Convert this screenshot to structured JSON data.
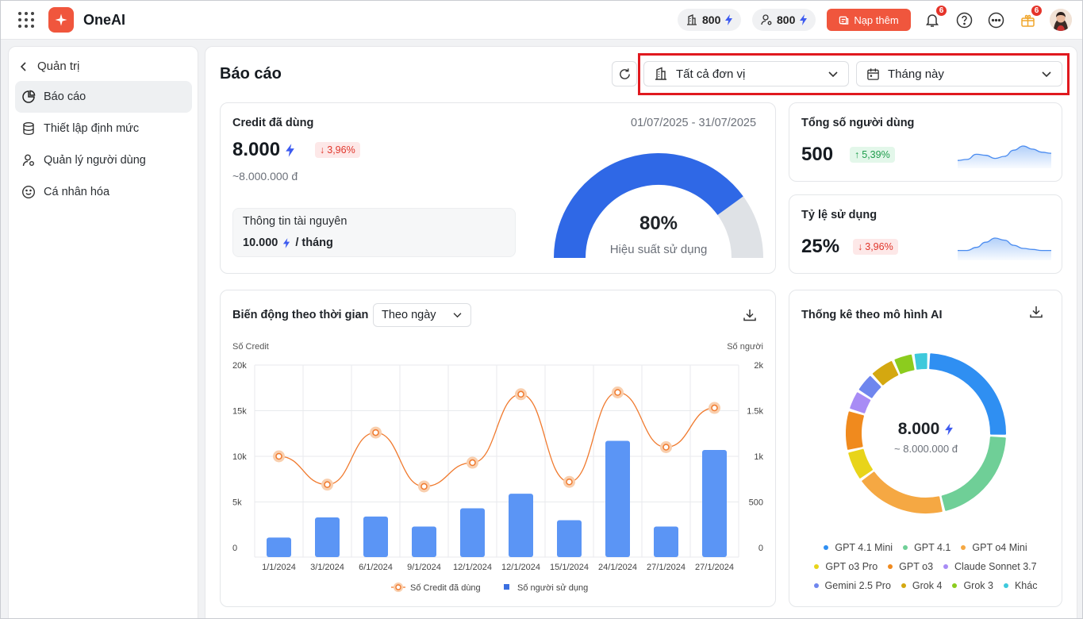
{
  "app": {
    "brand": "OneAI",
    "credit_a": "800",
    "credit_b": "800",
    "topup_label": "Nạp thêm",
    "notif_count": "6",
    "gift_count": "6"
  },
  "sidebar": {
    "back_label": "Quản trị",
    "items": [
      {
        "label": "Báo cáo",
        "icon": "pie-chart-icon",
        "active": true
      },
      {
        "label": "Thiết lập định mức",
        "icon": "database-icon",
        "active": false
      },
      {
        "label": "Quản lý người dùng",
        "icon": "user-group-icon",
        "active": false
      },
      {
        "label": "Cá nhân hóa",
        "icon": "smile-icon",
        "active": false
      }
    ]
  },
  "page": {
    "title": "Báo cáo",
    "unit_filter": "Tất cả đơn vị",
    "period_filter": "Tháng này"
  },
  "credit_card": {
    "title": "Credit đã dùng",
    "date_range": "01/07/2025 - 31/07/2025",
    "value": "8.000",
    "delta": "3,96%",
    "money": "~8.000.000 đ",
    "resource_title": "Thông tin tài nguyên",
    "resource_value": "10.000",
    "resource_unit": "/ tháng",
    "gauge_percent": "80%",
    "gauge_label": "Hiệu suất sử dụng",
    "gauge_fraction": 0.8
  },
  "users_card": {
    "title": "Tổng số người dùng",
    "value": "500",
    "delta": "5,39%"
  },
  "usage_card": {
    "title": "Tỷ lệ sử dụng",
    "value": "25%",
    "delta": "3,96%"
  },
  "trend_card": {
    "title": "Biến động theo thời gian",
    "granularity": "Theo ngày"
  },
  "model_card": {
    "title": "Thống kê theo mô hình AI",
    "total": "8.000",
    "money": "~ 8.000.000 đ"
  },
  "chart_data": [
    {
      "type": "bar+line",
      "ylabel_left": "Số Credit",
      "ylabel_right": "Số người",
      "y_left_ticks": [
        "20k",
        "15k",
        "10k",
        "5k",
        "0"
      ],
      "y_right_ticks": [
        "2k",
        "1.5k",
        "1k",
        "500",
        "0"
      ],
      "ylim_left": [
        0,
        20000
      ],
      "ylim_right": [
        0,
        2000
      ],
      "categories": [
        "1/1/2024",
        "3/1/2024",
        "6/1/2024",
        "9/1/2024",
        "12/1/2024",
        "12/1/2024",
        "15/1/2024",
        "24/1/2024",
        "27/1/2024",
        "27/1/2024"
      ],
      "series": [
        {
          "name": "Số Credit đã dùng",
          "kind": "line",
          "axis": "left",
          "color": "#f07a2e",
          "values": [
            10000,
            6900,
            12600,
            6700,
            9300,
            16800,
            7200,
            17000,
            11000,
            15300
          ]
        },
        {
          "name": "Số người sử dụng",
          "kind": "bar",
          "axis": "right",
          "color": "#5b95f5",
          "values": [
            110,
            330,
            340,
            230,
            430,
            590,
            300,
            1170,
            230,
            1070
          ]
        }
      ],
      "grid": true,
      "legend": "bottom"
    },
    {
      "type": "pie",
      "style": "donut",
      "categories": [
        "GPT 4.1 Mini",
        "GPT 4.1",
        "GPT o4 Mini",
        "GPT o3 Pro",
        "GPT o3",
        "Claude Sonnet 3.7",
        "Gemini 2.5 Pro",
        "Grok 4",
        "Grok 3",
        "Khác"
      ],
      "values": [
        24,
        20,
        18,
        6,
        8,
        4,
        4,
        5,
        4,
        3
      ],
      "colors": [
        "#2f8ff2",
        "#6fcf97",
        "#f5a843",
        "#e8d41a",
        "#f08a1e",
        "#a88cf5",
        "#6f86ee",
        "#d4a810",
        "#8ccc1e",
        "#3ec9dc"
      ],
      "legend": "bottom"
    },
    {
      "type": "area",
      "name": "users-sparkline",
      "values": [
        3,
        3.5,
        6,
        5.5,
        4,
        5,
        8,
        10,
        8.5,
        7,
        6.5
      ]
    },
    {
      "type": "area",
      "name": "usage-sparkline",
      "values": [
        4,
        4,
        5.5,
        8,
        10,
        9,
        6.5,
        5,
        4.5,
        4,
        4
      ]
    }
  ]
}
